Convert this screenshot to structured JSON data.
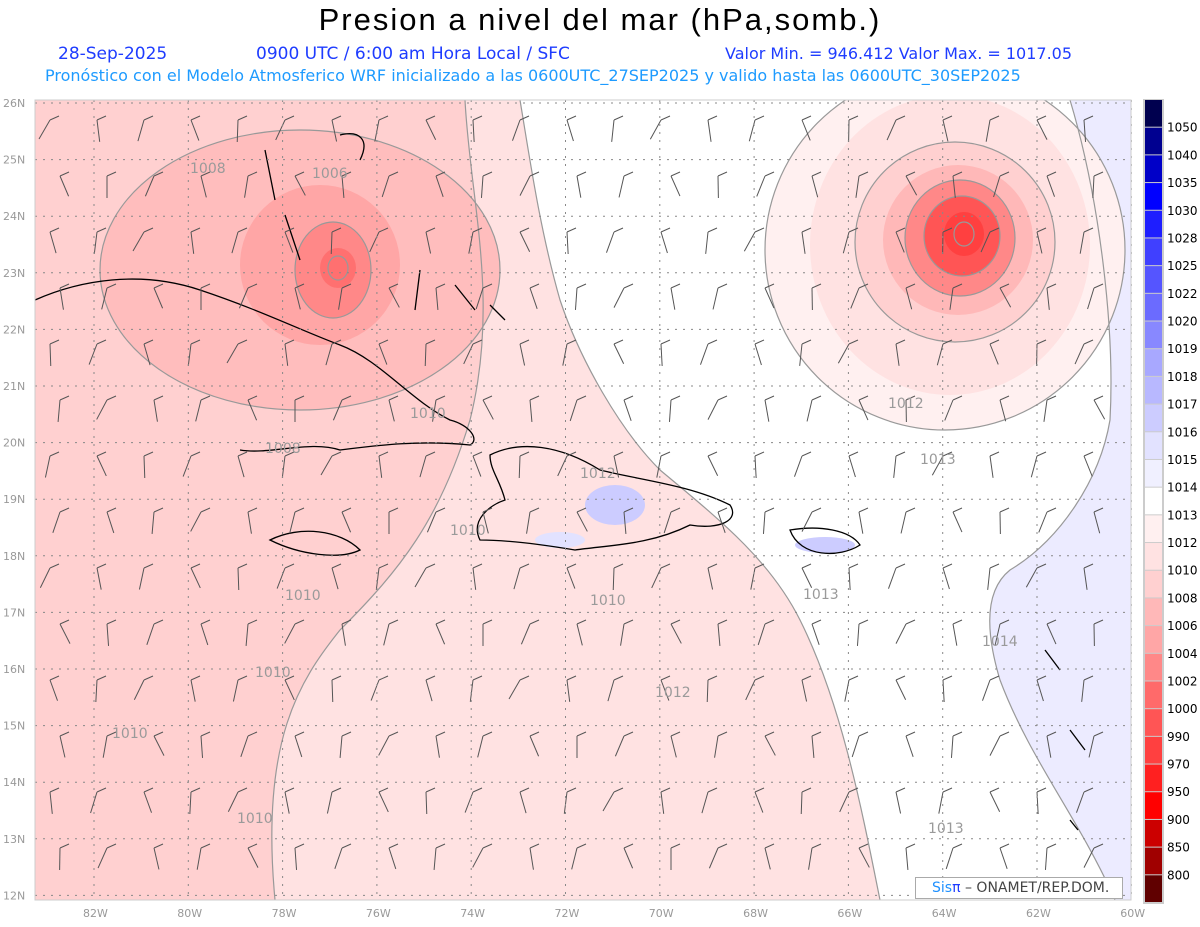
{
  "header": {
    "title": "Presion a nivel del mar (hPa,somb.)",
    "date": "28-Sep-2025",
    "time": "0900 UTC / 6:00 am Hora Local / SFC",
    "min_max": "Valor Min. = 946.412  Valor Max. = 1017.05",
    "model_info": "Pronóstico con el Modelo Atmosferico WRF inicializado a las 0600UTC_27SEP2025 y valido hasta las  0600UTC_30SEP2025"
  },
  "axes": {
    "lat_labels": [
      "26N",
      "25N",
      "24N",
      "23N",
      "22N",
      "21N",
      "20N",
      "19N",
      "18N",
      "17N",
      "16N",
      "15N",
      "14N",
      "13N",
      "12N"
    ],
    "lon_labels": [
      "82W",
      "80W",
      "78W",
      "76W",
      "74W",
      "72W",
      "70W",
      "68W",
      "66W",
      "64W",
      "62W",
      "60W"
    ]
  },
  "contour_labels": [
    "1008",
    "1006",
    "1010",
    "1008",
    "1012",
    "1010",
    "1010",
    "1010",
    "1010",
    "1010",
    "1012",
    "1013",
    "1013",
    "1014",
    "1012",
    "1013",
    "1010"
  ],
  "colorbar": {
    "labels": [
      "1050",
      "1040",
      "1035",
      "1030",
      "1028",
      "1025",
      "1022",
      "1020",
      "1019",
      "1018",
      "1017",
      "1016",
      "1015",
      "1014",
      "1013",
      "1012",
      "1010",
      "1008",
      "1006",
      "1004",
      "1002",
      "1000",
      "990",
      "970",
      "950",
      "900",
      "850",
      "800"
    ],
    "colors": [
      "#00004f",
      "#000090",
      "#0000c8",
      "#0000ff",
      "#1e1eff",
      "#4040ff",
      "#5555ff",
      "#6b6bff",
      "#8888ff",
      "#a8a8ff",
      "#b8b8ff",
      "#ccccff",
      "#e2e2ff",
      "#f0f0ff",
      "#ffffff",
      "#fff0f0",
      "#ffe2e2",
      "#ffd0d0",
      "#ffb8b8",
      "#ffa6a6",
      "#ff8888",
      "#ff6a6a",
      "#ff5555",
      "#ff4040",
      "#ff2020",
      "#ff0000",
      "#cc0000",
      "#a00000",
      "#600000"
    ]
  },
  "credit": {
    "sis": "Sis",
    "pi": "π",
    "org": "– ONAMET/REP.DOM."
  }
}
